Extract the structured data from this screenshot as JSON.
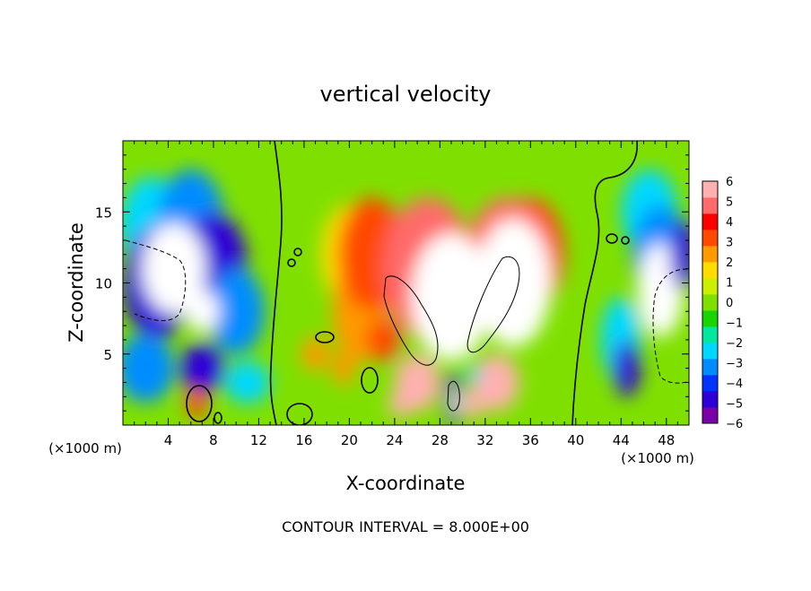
{
  "chart_data": {
    "type": "heatmap",
    "title": "vertical velocity",
    "xlabel": "X-coordinate",
    "ylabel": "Z-coordinate",
    "x_unit": "(×1000 m)",
    "y_unit": "(×1000 m)",
    "xlim": [
      0,
      50
    ],
    "ylim": [
      0,
      20
    ],
    "x_ticks": [
      4,
      8,
      12,
      16,
      20,
      24,
      28,
      32,
      36,
      40,
      44,
      48
    ],
    "y_ticks": [
      5,
      10,
      15
    ],
    "colorbar": {
      "min": -6,
      "max": 6,
      "tick_values": [
        6,
        5,
        4,
        3,
        2,
        1,
        0,
        -1,
        -2,
        -3,
        -4,
        -5,
        -6
      ],
      "tick_labels": [
        "6",
        "5",
        "4",
        "3",
        "2",
        "1",
        "0",
        "−1",
        "−2",
        "−3",
        "−4",
        "−5",
        "−6"
      ],
      "colors": [
        "#7a00a8",
        "#2d00d8",
        "#0033ff",
        "#008cff",
        "#00d8ff",
        "#00e8a0",
        "#19d400",
        "#7fe000",
        "#ccee00",
        "#ffdc00",
        "#ff9a00",
        "#ff4a00",
        "#ff0000",
        "#ff6a6a",
        "#ffb0b0"
      ]
    },
    "out_of_range": "white",
    "contour_interval": 8.0,
    "features": [
      {
        "kind": "updraft",
        "x": 28.5,
        "z": 9,
        "peak": 16
      },
      {
        "kind": "updraft",
        "x": 34.5,
        "z": 10,
        "peak": 16
      },
      {
        "kind": "downdraft",
        "x": 4.5,
        "z": 11,
        "peak": -14
      },
      {
        "kind": "downdraft",
        "x": 47.5,
        "z": 9.5,
        "peak": -13
      }
    ]
  },
  "footer": {
    "contour_interval_text": "CONTOUR INTERVAL = 8.000E+00"
  }
}
